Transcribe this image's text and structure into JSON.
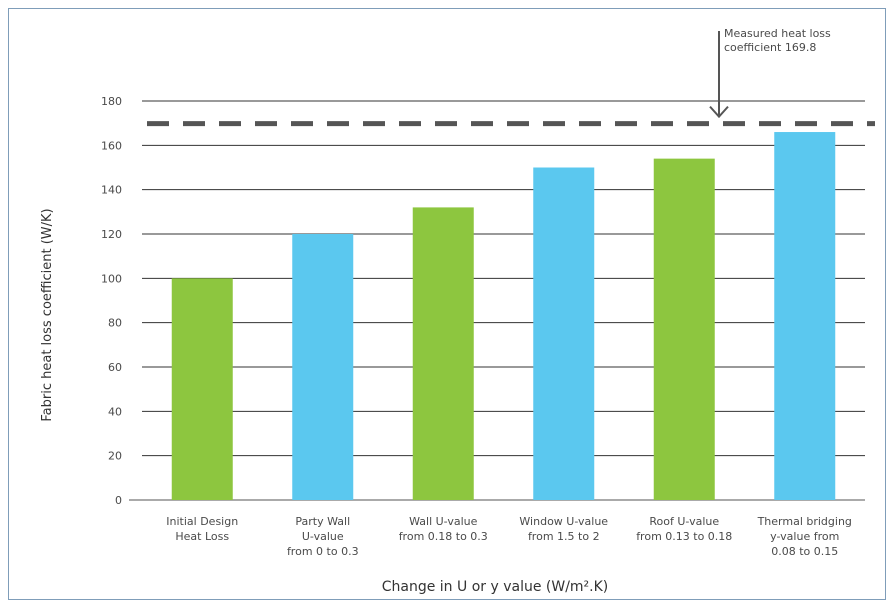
{
  "chart_data": {
    "type": "bar",
    "categories": [
      [
        "Initial Design",
        "Heat Loss"
      ],
      [
        "Party Wall",
        "U-value",
        "from 0 to 0.3"
      ],
      [
        "Wall U-value",
        "from 0.18 to 0.3"
      ],
      [
        "Window U-value",
        "from 1.5 to 2"
      ],
      [
        "Roof U-value",
        "from 0.13 to 0.18"
      ],
      [
        "Thermal bridging",
        "y-value from",
        "0.08 to 0.15"
      ]
    ],
    "values": [
      100,
      120,
      132,
      150,
      154,
      166
    ],
    "bar_colors": [
      "#8dc63f",
      "#5bc8ef",
      "#8dc63f",
      "#5bc8ef",
      "#8dc63f",
      "#5bc8ef"
    ],
    "xlabel": "Change in U or y value (W/m².K)",
    "ylabel": "Fabric heat loss coefficient (W/K)",
    "ylim": [
      0,
      180
    ],
    "yticks": [
      0,
      20,
      40,
      60,
      80,
      100,
      120,
      140,
      160,
      180
    ],
    "grid": true,
    "reference_line": {
      "value": 169.8,
      "style": "dashed",
      "color": "#555555",
      "annotation": [
        "Measured heat loss",
        "coefficient 169.8"
      ]
    }
  }
}
